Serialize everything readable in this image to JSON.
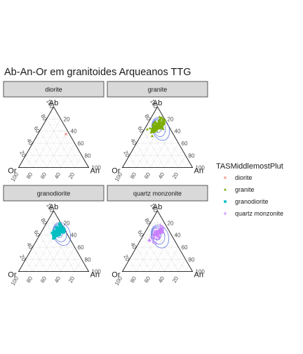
{
  "chart_data": {
    "type": "ternary",
    "title": "Ab-An-Or em granitoides Arqueanos TTG",
    "vertices": {
      "top": "Ab",
      "left": "Or",
      "right": "An"
    },
    "axis_ticks": [
      "20",
      "40",
      "60",
      "80",
      "100"
    ],
    "grid": true,
    "legend": {
      "title": "TASMiddlemostPlut",
      "placement": "right",
      "entries": [
        {
          "name": "diorite",
          "color": "#F8766D",
          "shape": "cross"
        },
        {
          "name": "granite",
          "color": "#7CAE00",
          "shape": "triangle"
        },
        {
          "name": "granodiorite",
          "color": "#00BFC4",
          "shape": "square"
        },
        {
          "name": "quartz monzonite",
          "color": "#C77CFF",
          "shape": "plus"
        }
      ]
    },
    "panels": [
      {
        "label": "diorite",
        "color": "#F8766D",
        "shape": "cross",
        "points": [
          {
            "Ab": 55,
            "An": 40,
            "Or": 5
          }
        ]
      },
      {
        "label": "granite",
        "color": "#7CAE00",
        "shape": "triangle",
        "center": {
          "Ab": 68,
          "An": 16,
          "Or": 16
        },
        "spread": 0.05,
        "count": 130,
        "contour_color": "#3B5BDB"
      },
      {
        "label": "granodiorite",
        "color": "#00BFC4",
        "shape": "square",
        "center": {
          "Ab": 66,
          "An": 24,
          "Or": 10
        },
        "spread": 0.045,
        "count": 160,
        "contour_color": "#3B5BDB"
      },
      {
        "label": "quartz monzonite",
        "color": "#C77CFF",
        "shape": "plus",
        "center": {
          "Ab": 62,
          "An": 18,
          "Or": 20
        },
        "spread": 0.06,
        "count": 60,
        "contour_color": "#3B5BDB"
      }
    ]
  }
}
